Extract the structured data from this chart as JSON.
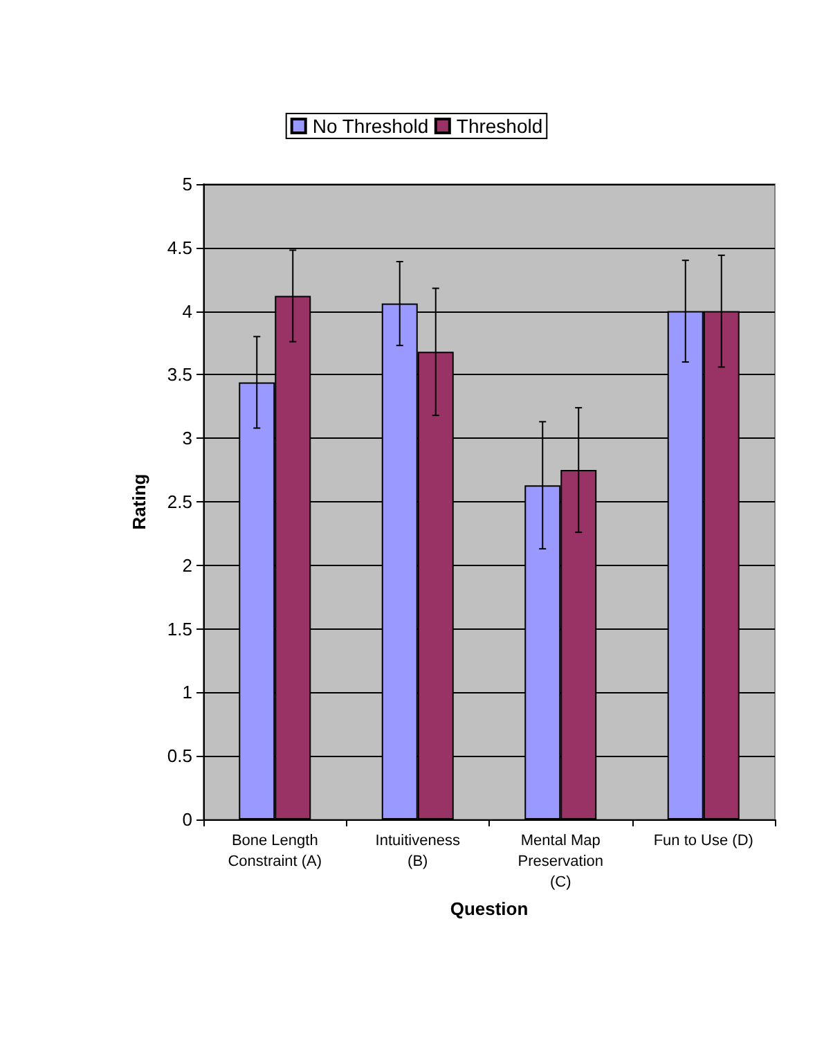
{
  "chart_data": {
    "type": "bar",
    "xlabel": "Question",
    "ylabel": "Rating",
    "categories": [
      "Bone Length Constraint (A)",
      "Intuitiveness (B)",
      "Mental Map Preservation (C)",
      "Fun to Use (D)"
    ],
    "series": [
      {
        "name": "No Threshold",
        "color": "#9999ff",
        "values": [
          3.44,
          4.06,
          2.63,
          4.0
        ],
        "errors": [
          0.36,
          0.33,
          0.5,
          0.4
        ]
      },
      {
        "name": "Threshold",
        "color": "#993366",
        "values": [
          4.12,
          3.68,
          2.75,
          4.0
        ],
        "errors": [
          0.36,
          0.5,
          0.49,
          0.44
        ]
      }
    ],
    "ylim": [
      0,
      5
    ],
    "yticks": [
      0,
      0.5,
      1,
      1.5,
      2,
      2.5,
      3,
      3.5,
      4,
      4.5,
      5
    ],
    "grid": "y",
    "legend": "top"
  }
}
